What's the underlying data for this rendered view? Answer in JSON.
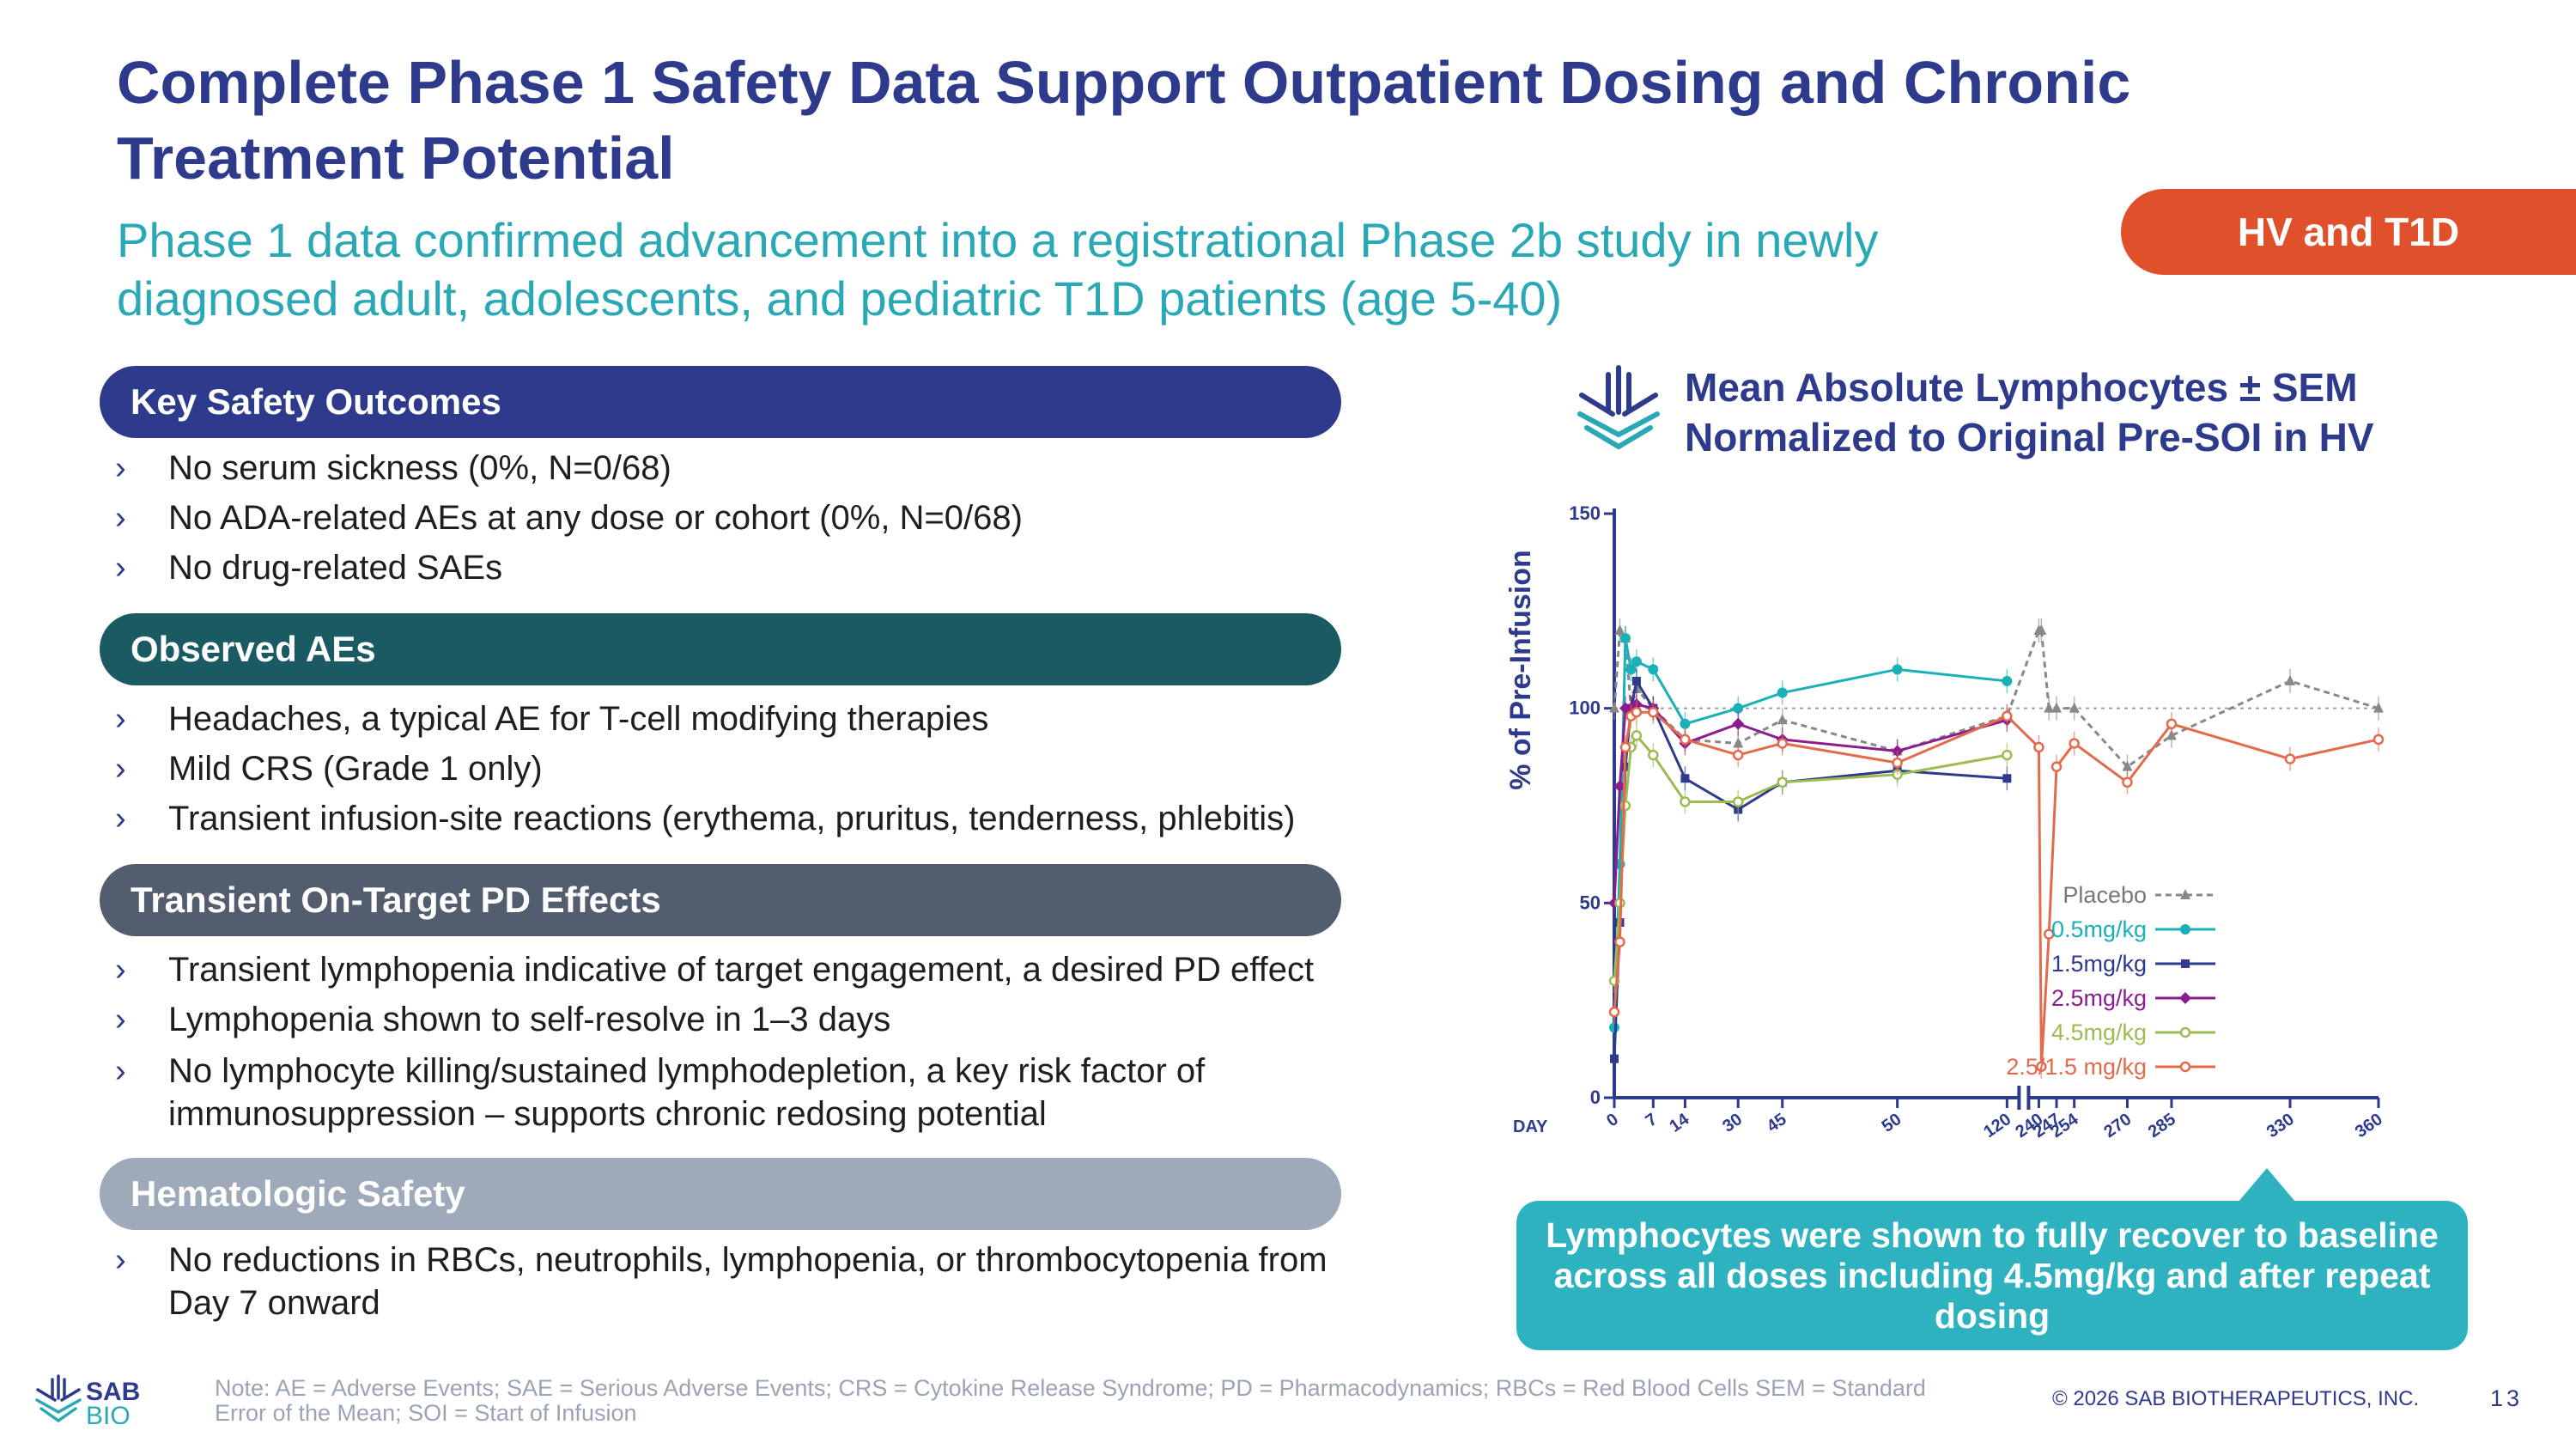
{
  "title": "Complete Phase 1 Safety Data Support Outpatient Dosing and Chronic Treatment Potential",
  "subtitle": "Phase 1 data confirmed advancement into a registrational Phase 2b study in newly diagnosed adult, adolescents, and pediatric T1D patients (age 5-40)",
  "tag": "HV and T1D",
  "sections": [
    {
      "heading": "Key Safety Outcomes",
      "color": "#2e3a8c",
      "bullets": [
        "No serum sickness (0%, N=0/68)",
        "No ADA-related AEs at any dose or cohort (0%, N=0/68)",
        "No drug-related SAEs"
      ]
    },
    {
      "heading": "Observed AEs",
      "color": "#1a5a63",
      "bullets": [
        "Headaches, a typical AE for T-cell modifying therapies",
        "Mild CRS (Grade 1 only)",
        "Transient infusion-site reactions (erythema, pruritus, tenderness, phlebitis)"
      ]
    },
    {
      "heading": "Transient On-Target PD Effects",
      "color": "#525e6f",
      "bullets": [
        "Transient lymphopenia indicative of target engagement, a desired PD effect",
        "Lymphopenia shown to self-resolve in 1–3 days",
        "No lymphocyte killing/sustained lymphodepletion, a key risk factor of immunosuppression – supports chronic redosing potential"
      ]
    },
    {
      "heading": "Hematologic Safety",
      "color": "#9ea9ba",
      "bullets": [
        "No reductions in RBCs, neutrophils, lymphopenia, or thrombocytopenia from Day 7 onward"
      ]
    }
  ],
  "chart_title_line1": "Mean Absolute Lymphocytes ± SEM",
  "chart_title_line2": "Normalized to Original Pre-SOI in HV",
  "callout": "Lymphocytes were shown to fully recover to baseline across all doses including 4.5mg/kg and after repeat dosing",
  "note": "Note: AE = Adverse Events; SAE = Serious Adverse Events; CRS = Cytokine Release Syndrome; PD = Pharmacodynamics; RBCs = Red Blood Cells SEM = Standard Error of the Mean; SOI = Start of Infusion",
  "logo_text_top": "SAB",
  "logo_text_bottom": "BIO",
  "copyright": "© 2026 SAB BIOTHERAPEUTICS, INC.",
  "page_number": "13",
  "chart_data": {
    "type": "line",
    "title": "Mean Absolute Lymphocytes ± SEM Normalized to Original Pre-SOI in HV",
    "xlabel": "DAY",
    "ylabel": "% of Pre-Infusion",
    "ylim": [
      0,
      150
    ],
    "yticks": [
      0,
      50,
      100,
      150
    ],
    "xticks": [
      "0",
      "7",
      "14",
      "30",
      "45",
      "50",
      "120",
      "240",
      "247",
      "254",
      "270",
      "285",
      "330",
      "360"
    ],
    "reference_line": 100,
    "legend_position": "right",
    "series": [
      {
        "name": "Placebo",
        "color": "#888888",
        "dashed": true,
        "marker": "triangle",
        "points": [
          [
            0,
            100
          ],
          [
            1,
            120
          ],
          [
            2,
            118
          ],
          [
            3,
            100
          ],
          [
            4,
            105
          ],
          [
            7,
            100
          ],
          [
            14,
            92
          ],
          [
            30,
            91
          ],
          [
            45,
            97
          ],
          [
            50,
            89
          ],
          [
            120,
            98
          ],
          [
            240,
            120
          ],
          [
            241,
            120
          ],
          [
            244,
            100
          ],
          [
            247,
            100
          ],
          [
            254,
            100
          ],
          [
            270,
            85
          ],
          [
            285,
            93
          ],
          [
            330,
            107
          ],
          [
            360,
            100
          ]
        ]
      },
      {
        "name": "0.5mg/kg",
        "color": "#1ab0b8",
        "dashed": false,
        "marker": "circle",
        "points": [
          [
            0,
            18
          ],
          [
            1,
            60
          ],
          [
            2,
            118
          ],
          [
            3,
            110
          ],
          [
            4,
            112
          ],
          [
            7,
            110
          ],
          [
            14,
            96
          ],
          [
            30,
            100
          ],
          [
            45,
            104
          ],
          [
            50,
            110
          ],
          [
            120,
            107
          ]
        ]
      },
      {
        "name": "1.5mg/kg",
        "color": "#2e3a8c",
        "dashed": false,
        "marker": "square",
        "points": [
          [
            0,
            10
          ],
          [
            1,
            45
          ],
          [
            2,
            85
          ],
          [
            3,
            100
          ],
          [
            4,
            107
          ],
          [
            7,
            100
          ],
          [
            14,
            82
          ],
          [
            30,
            74
          ],
          [
            45,
            81
          ],
          [
            50,
            84
          ],
          [
            120,
            82
          ]
        ]
      },
      {
        "name": "2.5mg/kg",
        "color": "#8b1d8e",
        "dashed": false,
        "marker": "diamond",
        "points": [
          [
            0,
            50
          ],
          [
            1,
            80
          ],
          [
            2,
            100
          ],
          [
            3,
            100
          ],
          [
            4,
            101
          ],
          [
            7,
            100
          ],
          [
            14,
            91
          ],
          [
            30,
            96
          ],
          [
            45,
            92
          ],
          [
            50,
            89
          ],
          [
            120,
            97
          ]
        ]
      },
      {
        "name": "4.5mg/kg",
        "color": "#9cbc53",
        "dashed": false,
        "marker": "open-circle",
        "points": [
          [
            0,
            30
          ],
          [
            1,
            50
          ],
          [
            2,
            75
          ],
          [
            3,
            90
          ],
          [
            4,
            93
          ],
          [
            7,
            88
          ],
          [
            14,
            76
          ],
          [
            30,
            76
          ],
          [
            45,
            81
          ],
          [
            50,
            83
          ],
          [
            120,
            88
          ]
        ]
      },
      {
        "name": "2.5/1.5 mg/kg",
        "color": "#e36b4c",
        "dashed": false,
        "marker": "open-circle",
        "points": [
          [
            0,
            22
          ],
          [
            1,
            40
          ],
          [
            2,
            90
          ],
          [
            3,
            98
          ],
          [
            4,
            99
          ],
          [
            7,
            99
          ],
          [
            14,
            92
          ],
          [
            30,
            88
          ],
          [
            45,
            91
          ],
          [
            50,
            86
          ],
          [
            120,
            98
          ],
          [
            240,
            90
          ],
          [
            241,
            8
          ],
          [
            244,
            42
          ],
          [
            247,
            85
          ],
          [
            254,
            91
          ],
          [
            270,
            81
          ],
          [
            285,
            96
          ],
          [
            330,
            87
          ],
          [
            360,
            92
          ]
        ]
      }
    ]
  }
}
